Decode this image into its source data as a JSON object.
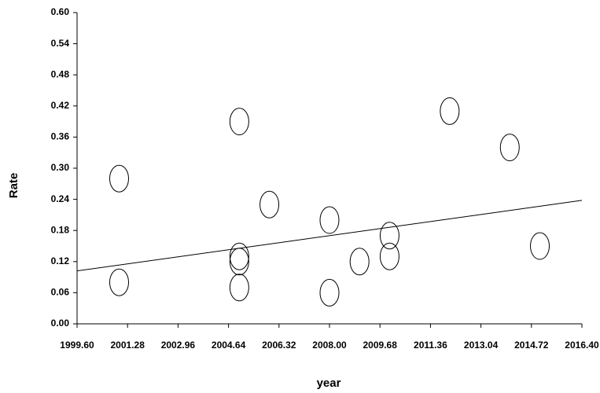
{
  "chart_data": {
    "type": "scatter",
    "x_label": "year",
    "y_label": "Rate",
    "x": [
      2001.0,
      2001.0,
      2005.0,
      2005.0,
      2005.0,
      2005.0,
      2006.0,
      2008.0,
      2008.0,
      2009.0,
      2010.0,
      2010.0,
      2012.0,
      2014.0,
      2015.0
    ],
    "values": [
      0.28,
      0.08,
      0.39,
      0.13,
      0.12,
      0.07,
      0.23,
      0.2,
      0.06,
      0.12,
      0.17,
      0.13,
      0.41,
      0.34,
      0.15
    ],
    "color": "#000000",
    "trend": {
      "x": [
        1999.6,
        2016.4
      ],
      "values": [
        0.102,
        0.238
      ]
    },
    "xlim": [
      1999.6,
      2016.4
    ],
    "xticks": [
      {
        "value": 1999.6,
        "label": "1999.60"
      },
      {
        "value": 2001.28,
        "label": "2001.28"
      },
      {
        "value": 2002.96,
        "label": "2002.96"
      },
      {
        "value": 2004.64,
        "label": "2004.64"
      },
      {
        "value": 2006.32,
        "label": "2006.32"
      },
      {
        "value": 2008.0,
        "label": "2008.00"
      },
      {
        "value": 2009.68,
        "label": "2009.68"
      },
      {
        "value": 2011.36,
        "label": "2011.36"
      },
      {
        "value": 2013.04,
        "label": "2013.04"
      },
      {
        "value": 2014.72,
        "label": "2014.72"
      },
      {
        "value": 2016.4,
        "label": "2016.40"
      }
    ],
    "ylim": [
      0,
      0.6
    ],
    "yticks": [
      {
        "value": 0,
        "label": "0.00"
      },
      {
        "value": 0.06,
        "label": "0.06"
      },
      {
        "value": 0.12,
        "label": "0.12"
      },
      {
        "value": 0.18,
        "label": "0.18"
      },
      {
        "value": 0.24,
        "label": "0.24"
      },
      {
        "value": 0.3,
        "label": "0.30"
      },
      {
        "value": 0.36,
        "label": "0.36"
      },
      {
        "value": 0.42,
        "label": "0.42"
      },
      {
        "value": 0.48,
        "label": "0.48"
      },
      {
        "value": 0.54,
        "label": "0.54"
      },
      {
        "value": 0.6,
        "label": "0.60"
      }
    ]
  }
}
